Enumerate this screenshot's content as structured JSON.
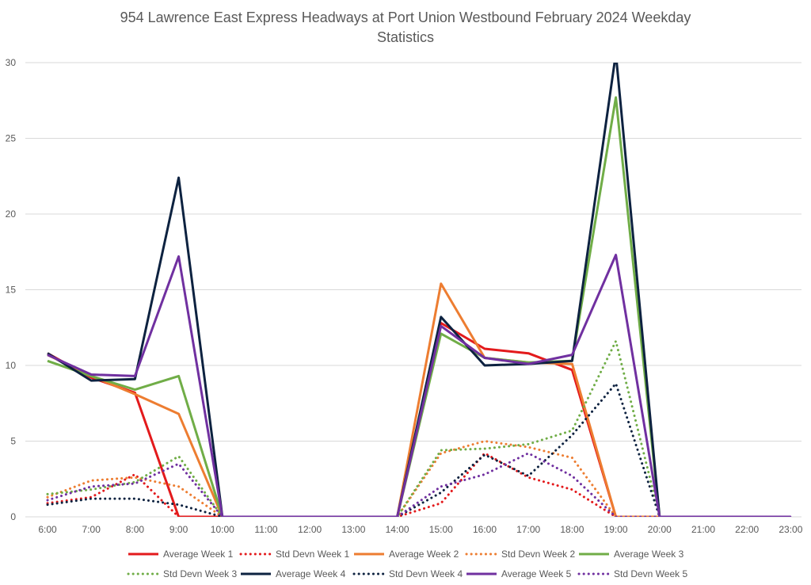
{
  "chart_data": {
    "type": "line",
    "title_line_1": "954 Lawrence East Express Headways at Port Union Westbound February 2024 Weekday",
    "title_line_2": "Statistics",
    "xlabel": "",
    "ylabel": "",
    "ylim": [
      0,
      30
    ],
    "yticks": [
      0,
      5,
      10,
      15,
      20,
      25,
      30
    ],
    "grid": true,
    "legend_position": "bottom",
    "categories": [
      "6:00",
      "7:00",
      "8:00",
      "9:00",
      "10:00",
      "11:00",
      "12:00",
      "13:00",
      "14:00",
      "15:00",
      "16:00",
      "17:00",
      "18:00",
      "19:00",
      "20:00",
      "21:00",
      "22:00",
      "23:00"
    ],
    "series": [
      {
        "name": "Average Week 1",
        "style": "solid",
        "color": "#e31a1c",
        "values": [
          10.8,
          9.2,
          8.2,
          0,
          0,
          0,
          0,
          0,
          0,
          12.8,
          11.1,
          10.8,
          9.7,
          0,
          0,
          0,
          0,
          0
        ]
      },
      {
        "name": "Std Devn Week 1",
        "style": "dotted",
        "color": "#e31a1c",
        "values": [
          0.9,
          1.3,
          2.8,
          0,
          0,
          0,
          0,
          0,
          0,
          0.9,
          4.2,
          2.6,
          1.8,
          0,
          0,
          0,
          0,
          0
        ]
      },
      {
        "name": "Average Week 2",
        "style": "solid",
        "color": "#ed7d31",
        "values": [
          10.7,
          9.3,
          8.1,
          6.8,
          0,
          0,
          0,
          0,
          0,
          15.4,
          10.5,
          10.2,
          10.1,
          0,
          0,
          0,
          0,
          0
        ]
      },
      {
        "name": "Std Devn Week 2",
        "style": "dotted",
        "color": "#ed7d31",
        "values": [
          1.3,
          2.4,
          2.6,
          2.0,
          0,
          0,
          0,
          0,
          0,
          4.2,
          5.0,
          4.6,
          3.9,
          0,
          0,
          0,
          0,
          0
        ]
      },
      {
        "name": "Average Week 3",
        "style": "solid",
        "color": "#70ad47",
        "values": [
          10.3,
          9.3,
          8.4,
          9.3,
          0,
          0,
          0,
          0,
          0,
          12.1,
          10.5,
          10.2,
          10.3,
          27.7,
          0,
          0,
          0,
          0
        ]
      },
      {
        "name": "Std Devn Week 3",
        "style": "dotted",
        "color": "#70ad47",
        "values": [
          1.5,
          1.8,
          2.3,
          4.0,
          0,
          0,
          0,
          0,
          0,
          4.4,
          4.5,
          4.8,
          5.7,
          11.6,
          0,
          0,
          0,
          0
        ]
      },
      {
        "name": "Average Week 4",
        "style": "solid",
        "color": "#0d2240",
        "values": [
          10.8,
          9.0,
          9.1,
          22.4,
          0,
          0,
          0,
          0,
          0,
          13.2,
          10.0,
          10.1,
          10.3,
          30.6,
          0,
          0,
          0,
          0
        ]
      },
      {
        "name": "Std Devn Week 4",
        "style": "dotted",
        "color": "#0d2240",
        "values": [
          0.8,
          1.2,
          1.2,
          0.8,
          0,
          0,
          0,
          0,
          0,
          1.6,
          4.1,
          2.7,
          5.4,
          8.8,
          0,
          0,
          0,
          0
        ]
      },
      {
        "name": "Average Week 5",
        "style": "solid",
        "color": "#7030a0",
        "values": [
          10.7,
          9.4,
          9.3,
          17.2,
          0,
          0,
          0,
          0,
          0,
          12.6,
          10.5,
          10.1,
          10.7,
          17.3,
          0,
          0,
          0,
          0
        ]
      },
      {
        "name": "Std Devn Week 5",
        "style": "dotted",
        "color": "#7030a0",
        "values": [
          1.1,
          2.0,
          2.2,
          3.5,
          0,
          0,
          0,
          0,
          0,
          2.0,
          2.8,
          4.2,
          2.7,
          0,
          0,
          0,
          0,
          0
        ]
      }
    ]
  }
}
